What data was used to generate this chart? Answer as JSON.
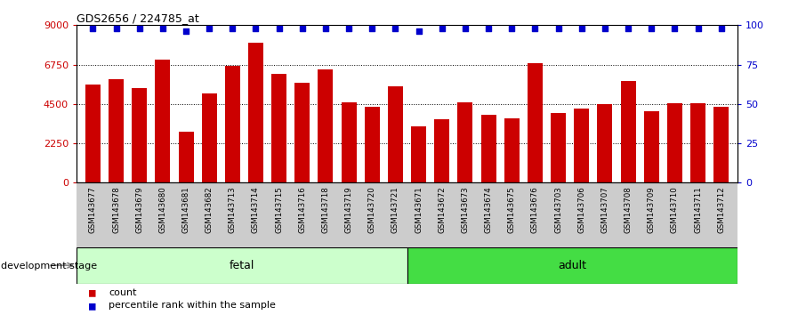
{
  "title": "GDS2656 / 224785_at",
  "categories": [
    "GSM143677",
    "GSM143678",
    "GSM143679",
    "GSM143680",
    "GSM143681",
    "GSM143682",
    "GSM143713",
    "GSM143714",
    "GSM143715",
    "GSM143716",
    "GSM143718",
    "GSM143719",
    "GSM143720",
    "GSM143721",
    "GSM143671",
    "GSM143672",
    "GSM143673",
    "GSM143674",
    "GSM143675",
    "GSM143676",
    "GSM143703",
    "GSM143706",
    "GSM143707",
    "GSM143708",
    "GSM143709",
    "GSM143710",
    "GSM143711",
    "GSM143712"
  ],
  "counts": [
    5600,
    5900,
    5400,
    7050,
    2900,
    5100,
    6700,
    8000,
    6200,
    5700,
    6450,
    4600,
    4350,
    5500,
    3200,
    3650,
    4600,
    3900,
    3700,
    6850,
    4000,
    4250,
    4500,
    5800,
    4100,
    4550,
    4550,
    4350
  ],
  "percentile_ranks": [
    98,
    98,
    98,
    98,
    96,
    98,
    98,
    98,
    98,
    98,
    98,
    98,
    98,
    98,
    96,
    98,
    98,
    98,
    98,
    98,
    98,
    98,
    98,
    98,
    98,
    98,
    98,
    98
  ],
  "fetal_count": 14,
  "adult_count": 14,
  "bar_color": "#cc0000",
  "dot_color": "#0000cc",
  "fetal_bg": "#ccffcc",
  "adult_bg": "#44dd44",
  "label_bg": "#cccccc",
  "ylim_left": [
    0,
    9000
  ],
  "ylim_right": [
    0,
    100
  ],
  "yticks_left": [
    0,
    2250,
    4500,
    6750,
    9000
  ],
  "yticks_right": [
    0,
    25,
    50,
    75,
    100
  ],
  "legend_count_label": "count",
  "legend_pct_label": "percentile rank within the sample",
  "dev_stage_label": "development stage"
}
